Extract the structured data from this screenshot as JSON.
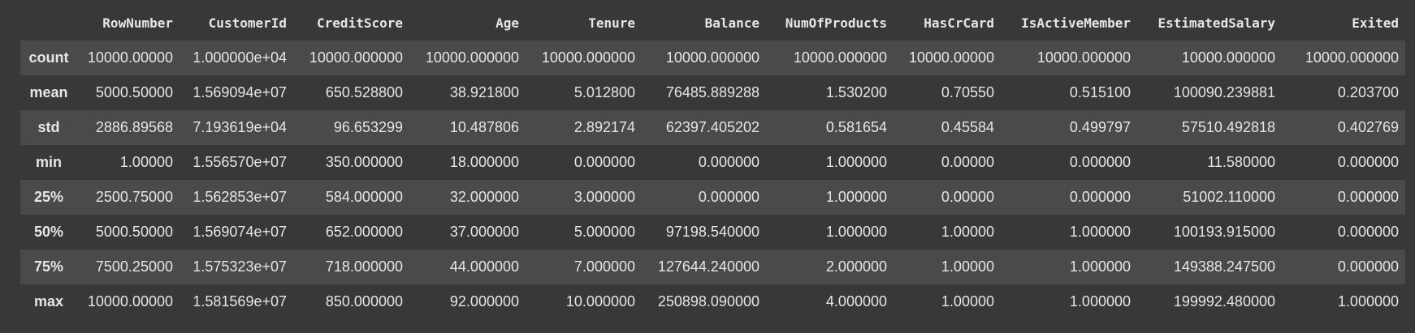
{
  "table": {
    "columns": [
      "RowNumber",
      "CustomerId",
      "CreditScore",
      "Age",
      "Tenure",
      "Balance",
      "NumOfProducts",
      "HasCrCard",
      "IsActiveMember",
      "EstimatedSalary",
      "Exited"
    ],
    "rows": [
      {
        "label": "count",
        "cells": [
          "10000.00000",
          "1.000000e+04",
          "10000.000000",
          "10000.000000",
          "10000.000000",
          "10000.000000",
          "10000.000000",
          "10000.00000",
          "10000.000000",
          "10000.000000",
          "10000.000000"
        ]
      },
      {
        "label": "mean",
        "cells": [
          "5000.50000",
          "1.569094e+07",
          "650.528800",
          "38.921800",
          "5.012800",
          "76485.889288",
          "1.530200",
          "0.70550",
          "0.515100",
          "100090.239881",
          "0.203700"
        ]
      },
      {
        "label": "std",
        "cells": [
          "2886.89568",
          "7.193619e+04",
          "96.653299",
          "10.487806",
          "2.892174",
          "62397.405202",
          "0.581654",
          "0.45584",
          "0.499797",
          "57510.492818",
          "0.402769"
        ]
      },
      {
        "label": "min",
        "cells": [
          "1.00000",
          "1.556570e+07",
          "350.000000",
          "18.000000",
          "0.000000",
          "0.000000",
          "1.000000",
          "0.00000",
          "0.000000",
          "11.580000",
          "0.000000"
        ]
      },
      {
        "label": "25%",
        "cells": [
          "2500.75000",
          "1.562853e+07",
          "584.000000",
          "32.000000",
          "3.000000",
          "0.000000",
          "1.000000",
          "0.00000",
          "0.000000",
          "51002.110000",
          "0.000000"
        ]
      },
      {
        "label": "50%",
        "cells": [
          "5000.50000",
          "1.569074e+07",
          "652.000000",
          "37.000000",
          "5.000000",
          "97198.540000",
          "1.000000",
          "1.00000",
          "1.000000",
          "100193.915000",
          "0.000000"
        ]
      },
      {
        "label": "75%",
        "cells": [
          "7500.25000",
          "1.575323e+07",
          "718.000000",
          "44.000000",
          "7.000000",
          "127644.240000",
          "2.000000",
          "1.00000",
          "1.000000",
          "149388.247500",
          "0.000000"
        ]
      },
      {
        "label": "max",
        "cells": [
          "10000.00000",
          "1.581569e+07",
          "850.000000",
          "92.000000",
          "10.000000",
          "250898.090000",
          "4.000000",
          "1.00000",
          "1.000000",
          "199992.480000",
          "1.000000"
        ]
      }
    ]
  }
}
